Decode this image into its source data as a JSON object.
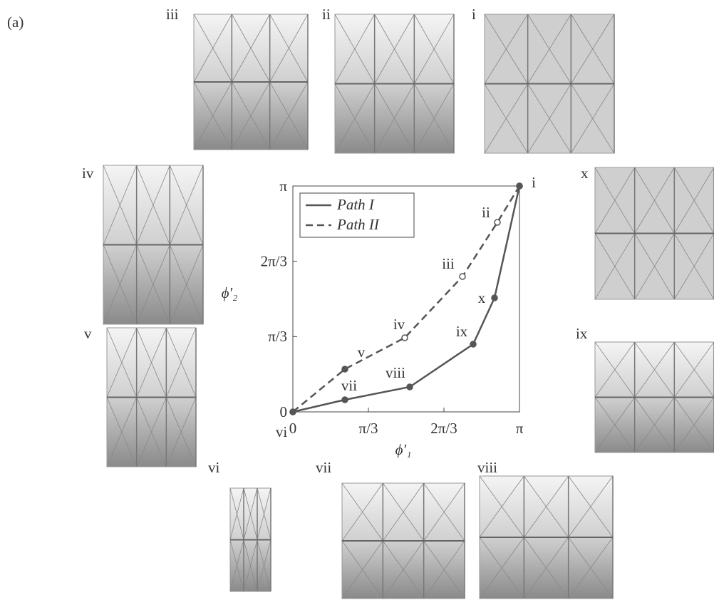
{
  "figure_label": "(a)",
  "panels": [
    "iii",
    "ii",
    "i",
    "iv",
    "v",
    "x",
    "ix",
    "vi",
    "vii",
    "viii"
  ],
  "chart_data": {
    "type": "line",
    "xlabel": "ϕ′₁",
    "ylabel": "ϕ′₂",
    "xlim": [
      0,
      3.1416
    ],
    "ylim": [
      0,
      3.1416
    ],
    "xticks": [
      0,
      {
        "value": 1.0472,
        "label": "π/3"
      },
      {
        "value": 2.0944,
        "label": "2π/3"
      },
      {
        "value": 3.1416,
        "label": "π"
      }
    ],
    "yticks": [
      0,
      {
        "value": 1.0472,
        "label": "π/3"
      },
      {
        "value": 2.0944,
        "label": "2π/3"
      },
      {
        "value": 3.1416,
        "label": "π"
      }
    ],
    "legend": "upper left",
    "series": [
      {
        "name": "Path I",
        "color": "#555555",
        "dash": false,
        "x": [
          0,
          0.7212,
          1.62,
          2.4995,
          2.7958,
          3.1416
        ],
        "y": [
          0,
          0.1685,
          0.3469,
          0.9415,
          1.5857,
          3.1416
        ],
        "point_labels": [
          "vi",
          "vii",
          "viii",
          "ix",
          "x",
          "i"
        ],
        "marker_filled": [
          true,
          true,
          true,
          true,
          true,
          true
        ]
      },
      {
        "name": "Path II",
        "color": "#555555",
        "dash": true,
        "x": [
          0,
          0.7212,
          1.551,
          2.3513,
          2.8354,
          3.1416
        ],
        "y": [
          0,
          0.5946,
          1.0307,
          1.883,
          2.6362,
          3.1416
        ],
        "point_labels": [
          null,
          "v",
          "iv",
          "iii",
          "ii",
          null
        ],
        "marker_filled": [
          true,
          true,
          false,
          false,
          false,
          true
        ]
      }
    ]
  }
}
